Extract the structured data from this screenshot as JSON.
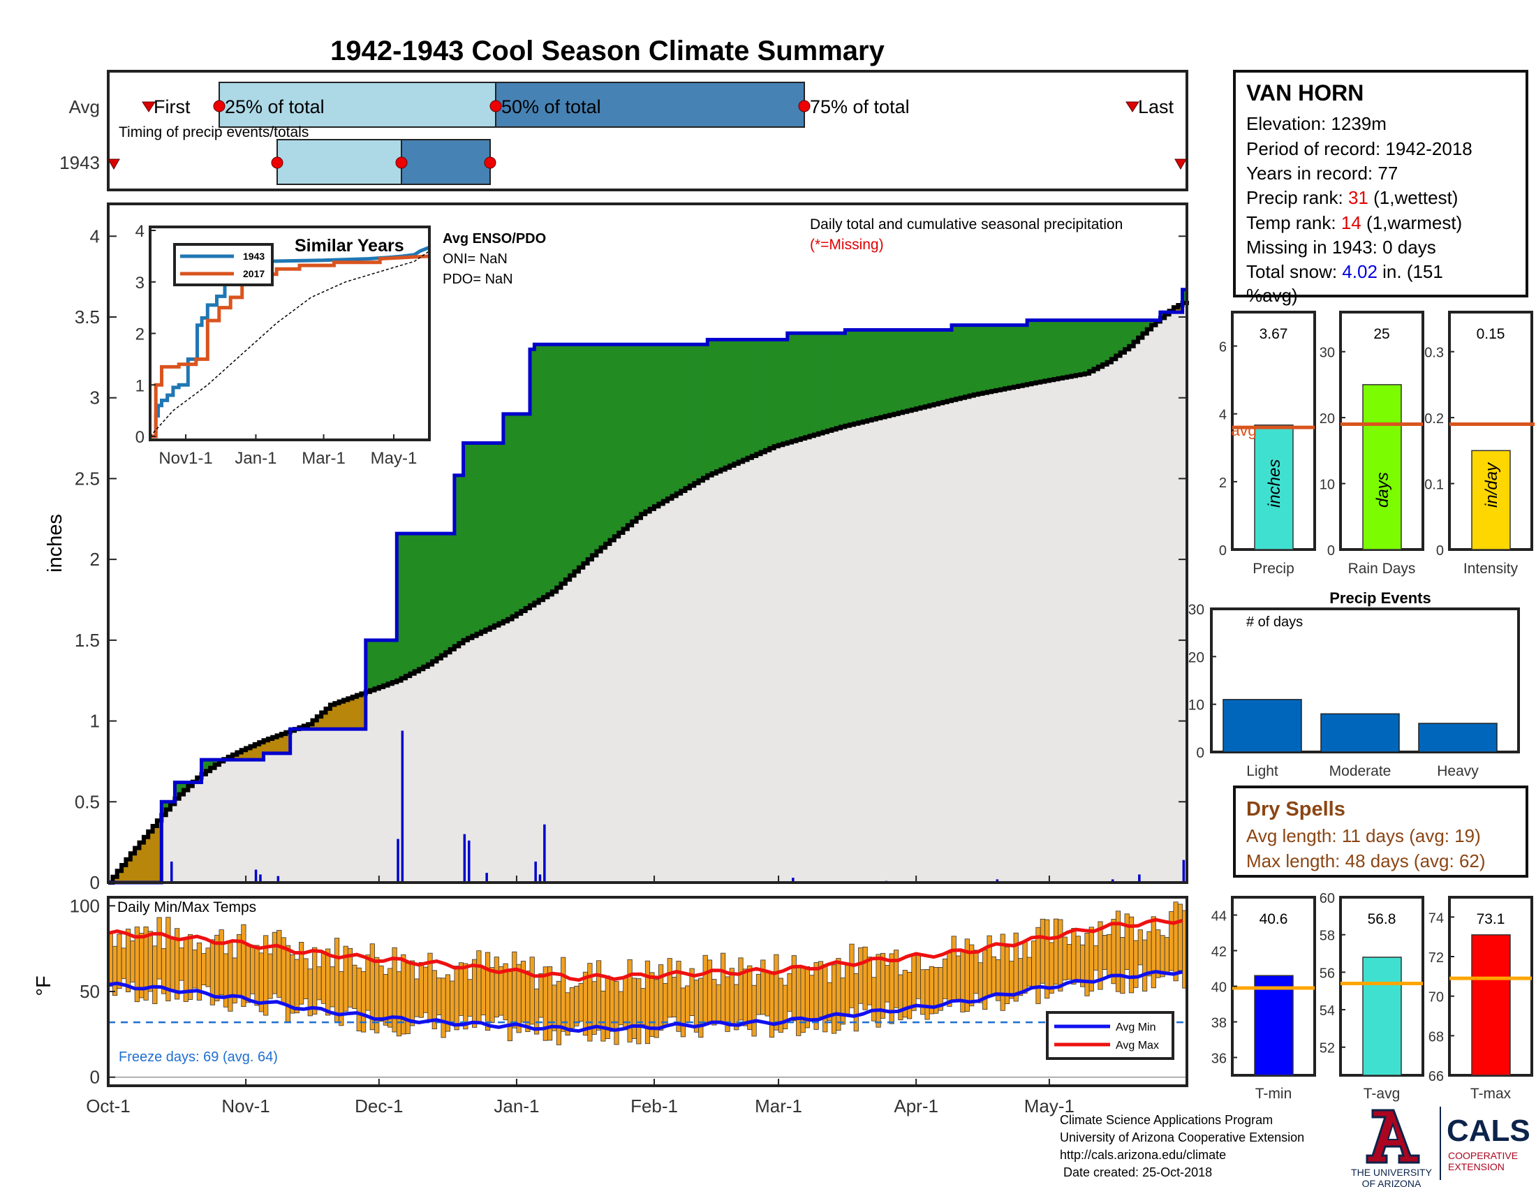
{
  "title": "1942-1943 Cool Season Climate Summary",
  "colors": {
    "title": "#1a4f8f",
    "green": "#228b22",
    "brown": "#b8860b",
    "grey": "#e8e7e6",
    "blue": "#0000cc",
    "rank_red": "#e00000",
    "snow_blue": "#0000dd",
    "dry_brown": "#8b4513",
    "temp_bar": "#f0a020",
    "orange": "#d9541e",
    "light_blue_box": "#add8e6",
    "dark_blue_box": "#4682b4",
    "event_bar": "#0066bb"
  },
  "month_labels": [
    "Oct-1",
    "Nov-1",
    "Dec-1",
    "Jan-1",
    "Feb-1",
    "Mar-1",
    "Apr-1",
    "May-1"
  ],
  "timing": {
    "row_labels": [
      "Avg",
      "1943"
    ],
    "caption": "Timing of precip events/totals",
    "first_label": "First",
    "last_label": "Last",
    "pct_labels": [
      "25% of total",
      "50% of total",
      "75% of total"
    ]
  },
  "station": {
    "name": "VAN HORN",
    "elevation": "Elevation: 1239m",
    "period": "Period of record: 1942-2018",
    "years": "Years in record: 77",
    "precip_rank_prefix": "Precip rank: ",
    "precip_rank_value": "31",
    "precip_rank_suffix": " (1,wettest)",
    "temp_rank_prefix": "Temp rank: ",
    "temp_rank_value": "14",
    "temp_rank_suffix": " (1,warmest)",
    "missing": "Missing in 1943: 0 days",
    "snow_prefix": "Total snow: ",
    "snow_value": "4.02",
    "snow_suffix": " in. (151",
    "snow_line2": "%avg)"
  },
  "main_precip": {
    "ylabel": "inches",
    "yticks": [
      "0",
      "0.5",
      "1",
      "1.5",
      "2",
      "2.5",
      "3",
      "3.5",
      "4"
    ],
    "caption": "Daily total and cumulative seasonal precipitation",
    "missing_note": "(*=Missing)",
    "enso_title": "Avg ENSO/PDO",
    "oni": "ONI= NaN",
    "pdo": "PDO= NaN"
  },
  "inset": {
    "title": "Similar Years",
    "legend": [
      "1943",
      "2017"
    ],
    "yticks": [
      "0",
      "1",
      "2",
      "3",
      "4"
    ],
    "xticks": [
      "Nov1-1",
      "Jan-1",
      "Mar-1",
      "May-1"
    ]
  },
  "small_bars": [
    {
      "value_label": "3.67",
      "xlabel": "Precip",
      "unit": "inches",
      "avg_label": "avg",
      "yticks": [
        "0",
        "2",
        "4",
        "6"
      ]
    },
    {
      "value_label": "25",
      "xlabel": "Rain Days",
      "unit": "days",
      "yticks": [
        "0",
        "10",
        "20",
        "30"
      ]
    },
    {
      "value_label": "0.15",
      "xlabel": "Intensity",
      "unit": "in/day",
      "yticks": [
        "0",
        "0.1",
        "0.2",
        "0.3"
      ]
    }
  ],
  "events": {
    "title": "Precip Events",
    "caption": "# of days",
    "yticks": [
      "0",
      "10",
      "20",
      "30"
    ],
    "categories": [
      "Light",
      "Moderate",
      "Heavy"
    ]
  },
  "dry_spells": {
    "title": "Dry Spells",
    "avg_length": "Avg length: 11 days (avg: 19)",
    "max_length": "Max length: 48 days (avg: 62)"
  },
  "temps": {
    "ylabel": "°F",
    "yticks": [
      "0",
      "50",
      "100"
    ],
    "caption": "Daily Min/Max Temps",
    "freeze": "Freeze days: 69 (avg. 64)",
    "legend": [
      "Avg Min",
      "Avg Max"
    ]
  },
  "temp_bars": [
    {
      "value_label": "40.6",
      "xlabel": "T-min",
      "yticks": [
        "36",
        "38",
        "40",
        "42",
        "44"
      ]
    },
    {
      "value_label": "56.8",
      "xlabel": "T-avg",
      "yticks": [
        "52",
        "54",
        "56",
        "58",
        "60"
      ]
    },
    {
      "value_label": "73.1",
      "xlabel": "T-max",
      "yticks": [
        "66",
        "68",
        "70",
        "72",
        "74"
      ]
    }
  ],
  "footer": {
    "lines": [
      "Climate Science Applications Program",
      "University of Arizona Cooperative Extension",
      "http://cals.arizona.edu/climate",
      " Date created: 25-Oct-2018"
    ],
    "ua_line1": "THE UNIVERSITY",
    "ua_line2": "OF ARIZONA",
    "cals": "CALS",
    "cals_line1": "COOPERATIVE",
    "cals_line2": "EXTENSION"
  },
  "chart_data": [
    {
      "type": "area",
      "title": "Daily total and cumulative seasonal precipitation",
      "ylabel": "inches",
      "ylim": [
        0,
        4.2
      ],
      "x_unit": "day of season starting Oct-1",
      "xlim": [
        0,
        243
      ],
      "series": [
        {
          "name": "1943",
          "x": [
            0,
            5,
            12,
            12,
            15,
            15,
            21,
            21,
            31,
            35,
            35,
            41,
            41,
            58,
            58,
            65,
            65,
            78,
            78,
            80,
            80,
            89,
            89,
            95,
            95,
            96,
            96,
            135,
            135,
            153,
            153,
            166,
            166,
            190,
            190,
            207,
            207,
            237,
            237,
            242,
            242,
            243
          ],
          "values": [
            0,
            0,
            0,
            0.5,
            0.5,
            0.62,
            0.62,
            0.76,
            0.76,
            0.76,
            0.8,
            0.8,
            0.95,
            0.95,
            1.5,
            1.5,
            2.16,
            2.16,
            2.52,
            2.52,
            2.72,
            2.72,
            2.9,
            2.9,
            3.3,
            3.3,
            3.33,
            3.33,
            3.36,
            3.36,
            3.4,
            3.4,
            3.42,
            3.42,
            3.45,
            3.45,
            3.48,
            3.48,
            3.53,
            3.53,
            3.67,
            3.67
          ]
        },
        {
          "name": "avg",
          "x": [
            0,
            5,
            10,
            15,
            20,
            25,
            30,
            35,
            45,
            50,
            65,
            72,
            80,
            90,
            100,
            110,
            120,
            135,
            150,
            165,
            180,
            195,
            210,
            220,
            225,
            230,
            235,
            240,
            243
          ],
          "values": [
            0,
            0.18,
            0.35,
            0.52,
            0.65,
            0.75,
            0.82,
            0.88,
            0.98,
            1.1,
            1.25,
            1.35,
            1.5,
            1.63,
            1.8,
            2.05,
            2.28,
            2.52,
            2.7,
            2.82,
            2.92,
            3.02,
            3.1,
            3.15,
            3.22,
            3.32,
            3.45,
            3.56,
            3.6
          ]
        }
      ],
      "daily_bars": {
        "x": [
          14,
          33,
          34,
          38,
          65,
          66,
          80,
          81,
          85,
          96,
          97,
          98,
          154,
          175,
          200,
          226,
          232,
          242
        ],
        "values": [
          0.13,
          0.08,
          0.05,
          0.04,
          0.27,
          0.94,
          0.3,
          0.26,
          0.06,
          0.13,
          0.05,
          0.36,
          0.03,
          0.01,
          0.02,
          0.02,
          0.05,
          0.14
        ]
      }
    },
    {
      "type": "line",
      "title": "Similar Years",
      "ylim": [
        0,
        4
      ],
      "series": [
        {
          "name": "1943",
          "x": [
            0,
            2,
            5,
            5,
            7,
            7,
            10,
            10,
            15,
            15,
            20,
            20,
            25,
            25,
            33,
            33,
            41,
            41,
            45,
            45,
            50,
            50,
            58,
            58,
            65,
            65,
            80,
            80,
            95,
            95,
            100,
            150,
            190,
            210,
            220,
            230,
            235,
            243
          ],
          "values": [
            0,
            0,
            0,
            0.4,
            0.4,
            0.6,
            0.6,
            0.7,
            0.7,
            0.8,
            0.8,
            0.95,
            0.95,
            1.0,
            1.0,
            1.5,
            1.5,
            2.16,
            2.16,
            2.3,
            2.3,
            2.55,
            2.55,
            2.72,
            2.72,
            3.3,
            3.3,
            3.35,
            3.35,
            3.38,
            3.4,
            3.42,
            3.45,
            3.48,
            3.5,
            3.53,
            3.6,
            3.67
          ]
        },
        {
          "name": "2017",
          "x": [
            0,
            5,
            5,
            10,
            10,
            25,
            25,
            40,
            40,
            50,
            50,
            60,
            60,
            70,
            70,
            80,
            80,
            95,
            95,
            110,
            110,
            130,
            130,
            160,
            160,
            200,
            200,
            243
          ],
          "values": [
            0,
            0,
            1.0,
            1.0,
            1.35,
            1.35,
            1.4,
            1.4,
            1.5,
            1.5,
            2.25,
            2.25,
            2.5,
            2.5,
            2.7,
            2.7,
            3.0,
            3.0,
            3.15,
            3.15,
            3.25,
            3.25,
            3.32,
            3.32,
            3.38,
            3.38,
            3.45,
            3.5
          ]
        },
        {
          "name": "avg",
          "x": [
            0,
            20,
            50,
            80,
            110,
            140,
            170,
            200,
            230,
            243
          ],
          "values": [
            0,
            0.5,
            1.0,
            1.6,
            2.2,
            2.7,
            3.0,
            3.2,
            3.4,
            3.6
          ]
        }
      ]
    },
    {
      "type": "bar",
      "categories": [
        "Precip",
        "Rain Days",
        "Intensity"
      ],
      "values": [
        3.67,
        25,
        0.15
      ],
      "avg": [
        3.6,
        19,
        0.19
      ],
      "ylims": [
        [
          0,
          7
        ],
        [
          0,
          36
        ],
        [
          0,
          0.36
        ]
      ]
    },
    {
      "type": "bar",
      "title": "Precip Events",
      "categories": [
        "Light",
        "Moderate",
        "Heavy"
      ],
      "values": [
        11,
        8,
        6
      ],
      "ylim": [
        0,
        30
      ]
    },
    {
      "type": "line",
      "title": "Daily Min/Max Temps",
      "ylabel": "°F",
      "ylim": [
        -5,
        105
      ],
      "freeze_line": 32,
      "series": [
        {
          "name": "Avg Max",
          "x": [
            0,
            15,
            30,
            45,
            60,
            75,
            90,
            105,
            120,
            135,
            150,
            165,
            180,
            195,
            210,
            225,
            243
          ],
          "values": [
            84,
            82,
            78,
            73,
            69,
            66,
            62,
            58,
            59,
            61,
            62,
            66,
            70,
            74,
            81,
            88,
            92
          ]
        },
        {
          "name": "Avg Min",
          "x": [
            0,
            15,
            30,
            45,
            60,
            75,
            90,
            105,
            120,
            135,
            150,
            165,
            180,
            195,
            210,
            225,
            243
          ],
          "values": [
            54,
            51,
            46,
            40,
            35,
            32,
            30,
            28,
            29,
            31,
            32,
            36,
            40,
            45,
            52,
            58,
            62
          ]
        }
      ],
      "daily_range_note": "daily min-max bars"
    },
    {
      "type": "bar",
      "categories": [
        "T-min",
        "T-avg",
        "T-max"
      ],
      "values": [
        40.6,
        56.8,
        73.1
      ],
      "avg": [
        39.9,
        55.4,
        70.9
      ],
      "ylims": [
        [
          35,
          45
        ],
        [
          50.5,
          60
        ],
        [
          66,
          75
        ]
      ]
    }
  ]
}
